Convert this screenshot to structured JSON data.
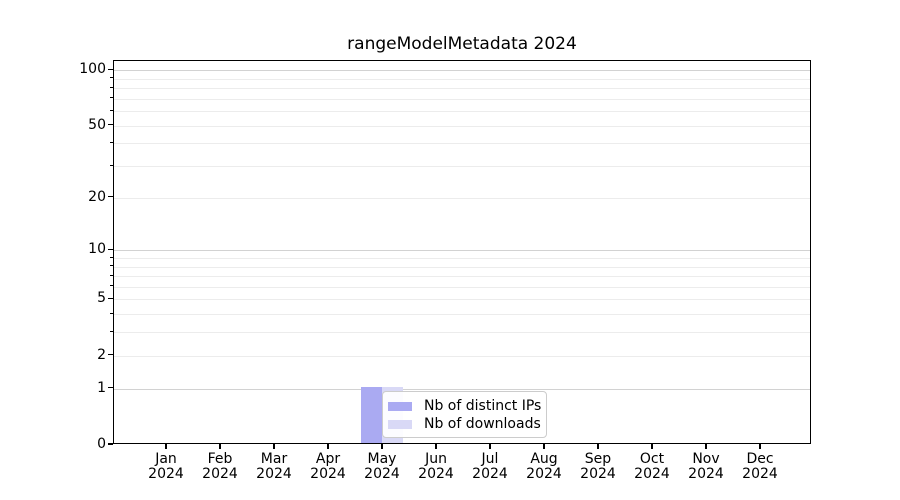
{
  "page": {
    "background": "#ffffff"
  },
  "chart_data": {
    "type": "bar",
    "title": "rangeModelMetadata 2024",
    "year_label": "2024",
    "categories": [
      "Jan",
      "Feb",
      "Mar",
      "Apr",
      "May",
      "Jun",
      "Jul",
      "Aug",
      "Sep",
      "Oct",
      "Nov",
      "Dec"
    ],
    "series": [
      {
        "name": "Nb of distinct IPs",
        "color": "#aaaaf2",
        "values": [
          0,
          0,
          0,
          0,
          1,
          0,
          0,
          0,
          0,
          0,
          0,
          0
        ]
      },
      {
        "name": "Nb of downloads",
        "color": "#d9d9f6",
        "values": [
          0,
          0,
          0,
          0,
          1,
          0,
          0,
          0,
          0,
          0,
          0,
          0
        ]
      }
    ],
    "xlabel": "",
    "ylabel": "",
    "yscale": "log1p",
    "ylim": [
      0,
      113
    ],
    "y_major_ticks": [
      0,
      1,
      2,
      5,
      10,
      20,
      50,
      100
    ],
    "y_minor_ticks": [
      3,
      4,
      6,
      7,
      8,
      9,
      30,
      40,
      60,
      70,
      80,
      90
    ],
    "y_major_gridlines": [
      1,
      10,
      100
    ],
    "y_minor_gridlines": [
      2,
      3,
      4,
      5,
      6,
      7,
      8,
      9,
      20,
      30,
      40,
      50,
      60,
      70,
      80,
      90
    ],
    "grid": "on",
    "legend_position": "lower center (over May bars)",
    "colors": {
      "major_grid": "#d2d2d2",
      "minor_grid": "#ececec",
      "spine": "#000000",
      "text": "#000000",
      "legend_border": "#cccccc"
    }
  }
}
